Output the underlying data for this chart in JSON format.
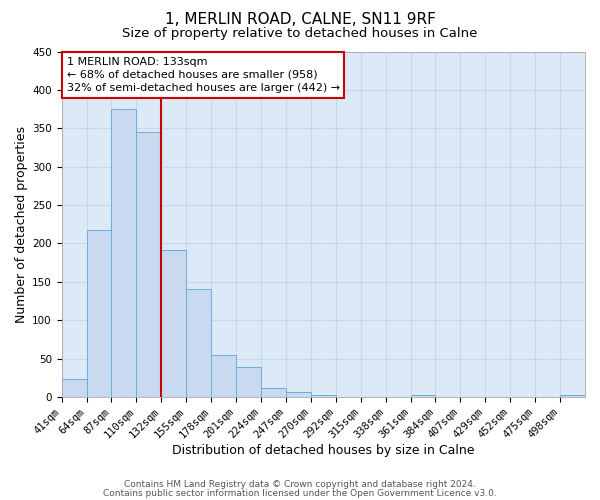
{
  "title": "1, MERLIN ROAD, CALNE, SN11 9RF",
  "subtitle": "Size of property relative to detached houses in Calne",
  "xlabel": "Distribution of detached houses by size in Calne",
  "ylabel": "Number of detached properties",
  "bin_labels": [
    "41sqm",
    "64sqm",
    "87sqm",
    "110sqm",
    "132sqm",
    "155sqm",
    "178sqm",
    "201sqm",
    "224sqm",
    "247sqm",
    "270sqm",
    "292sqm",
    "315sqm",
    "338sqm",
    "361sqm",
    "384sqm",
    "407sqm",
    "429sqm",
    "452sqm",
    "475sqm",
    "498sqm"
  ],
  "bar_heights": [
    23,
    218,
    375,
    345,
    191,
    141,
    55,
    39,
    12,
    6,
    3,
    0,
    0,
    0,
    2,
    0,
    0,
    0,
    0,
    0,
    2
  ],
  "bar_color": "#c9d9f0",
  "bar_edge_color": "#6baed6",
  "vline_x_idx": 4,
  "vline_color": "#cc0000",
  "ylim": [
    0,
    450
  ],
  "yticks": [
    0,
    50,
    100,
    150,
    200,
    250,
    300,
    350,
    400,
    450
  ],
  "annotation_title": "1 MERLIN ROAD: 133sqm",
  "annotation_line1": "← 68% of detached houses are smaller (958)",
  "annotation_line2": "32% of semi-detached houses are larger (442) →",
  "annotation_box_color": "#ffffff",
  "annotation_box_edge": "#cc0000",
  "footer1": "Contains HM Land Registry data © Crown copyright and database right 2024.",
  "footer2": "Contains public sector information licensed under the Open Government Licence v3.0.",
  "background_color": "#dce9f7",
  "grid_color": "#c8d8ec",
  "title_fontsize": 11,
  "subtitle_fontsize": 9.5,
  "axis_label_fontsize": 9,
  "tick_fontsize": 7.5,
  "annotation_fontsize": 8,
  "footer_fontsize": 6.5
}
